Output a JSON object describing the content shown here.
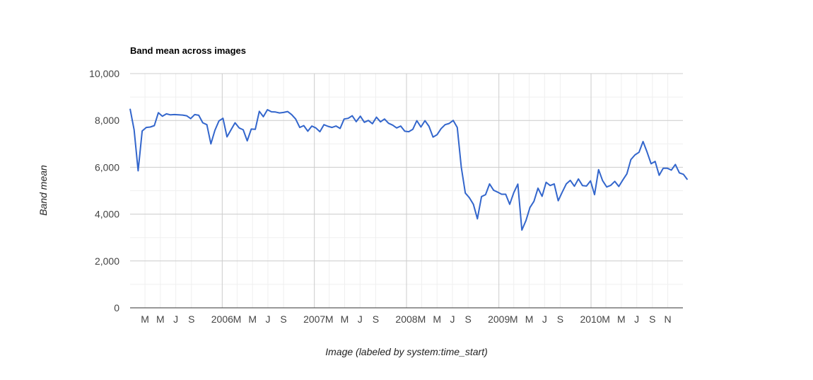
{
  "chart_data": {
    "type": "line",
    "title": "Band mean across images",
    "xlabel": "Image (labeled by system:time_start)",
    "ylabel": "Band mean",
    "ylim": [
      0,
      10000
    ],
    "y_ticks": [
      "0",
      "2,000",
      "4,000",
      "6,000",
      "8,000",
      "10,000"
    ],
    "y_tick_values": [
      0,
      2000,
      4000,
      6000,
      8000,
      10000
    ],
    "x_range": [
      "2005-01-01",
      "2010-12-31"
    ],
    "x_ticks": [
      {
        "label": "M",
        "date": "2005-03-01"
      },
      {
        "label": "M",
        "date": "2005-05-01"
      },
      {
        "label": "J",
        "date": "2005-07-01"
      },
      {
        "label": "S",
        "date": "2005-09-01"
      },
      {
        "label": "2006",
        "date": "2006-01-01"
      },
      {
        "label": "M",
        "date": "2006-03-01"
      },
      {
        "label": "M",
        "date": "2006-05-01"
      },
      {
        "label": "J",
        "date": "2006-07-01"
      },
      {
        "label": "S",
        "date": "2006-09-01"
      },
      {
        "label": "2007",
        "date": "2007-01-01"
      },
      {
        "label": "M",
        "date": "2007-03-01"
      },
      {
        "label": "M",
        "date": "2007-05-01"
      },
      {
        "label": "J",
        "date": "2007-07-01"
      },
      {
        "label": "S",
        "date": "2007-09-01"
      },
      {
        "label": "2008",
        "date": "2008-01-01"
      },
      {
        "label": "M",
        "date": "2008-03-01"
      },
      {
        "label": "M",
        "date": "2008-05-01"
      },
      {
        "label": "J",
        "date": "2008-07-01"
      },
      {
        "label": "S",
        "date": "2008-09-01"
      },
      {
        "label": "2009",
        "date": "2009-01-01"
      },
      {
        "label": "M",
        "date": "2009-03-01"
      },
      {
        "label": "M",
        "date": "2009-05-01"
      },
      {
        "label": "J",
        "date": "2009-07-01"
      },
      {
        "label": "S",
        "date": "2009-09-01"
      },
      {
        "label": "2010",
        "date": "2010-01-01"
      },
      {
        "label": "M",
        "date": "2010-03-01"
      },
      {
        "label": "M",
        "date": "2010-05-01"
      },
      {
        "label": "J",
        "date": "2010-07-01"
      },
      {
        "label": "S",
        "date": "2010-09-01"
      },
      {
        "label": "N",
        "date": "2010-11-01"
      }
    ],
    "grid": true,
    "legend": "none",
    "series": [
      {
        "color": "#3366cc",
        "points": [
          [
            "2005-01-01",
            8500
          ],
          [
            "2005-01-17",
            7600
          ],
          [
            "2005-02-02",
            5850
          ],
          [
            "2005-02-18",
            7550
          ],
          [
            "2005-03-06",
            7700
          ],
          [
            "2005-03-22",
            7720
          ],
          [
            "2005-04-07",
            7780
          ],
          [
            "2005-04-23",
            8330
          ],
          [
            "2005-05-09",
            8180
          ],
          [
            "2005-05-25",
            8280
          ],
          [
            "2005-06-10",
            8240
          ],
          [
            "2005-06-26",
            8250
          ],
          [
            "2005-07-12",
            8240
          ],
          [
            "2005-07-28",
            8230
          ],
          [
            "2005-08-13",
            8200
          ],
          [
            "2005-08-29",
            8080
          ],
          [
            "2005-09-14",
            8250
          ],
          [
            "2005-09-30",
            8220
          ],
          [
            "2005-10-16",
            7900
          ],
          [
            "2005-11-01",
            7820
          ],
          [
            "2005-11-17",
            7000
          ],
          [
            "2005-12-03",
            7580
          ],
          [
            "2005-12-19",
            7980
          ],
          [
            "2006-01-04",
            8090
          ],
          [
            "2006-01-20",
            7300
          ],
          [
            "2006-02-05",
            7600
          ],
          [
            "2006-02-21",
            7900
          ],
          [
            "2006-03-09",
            7680
          ],
          [
            "2006-03-25",
            7600
          ],
          [
            "2006-04-10",
            7130
          ],
          [
            "2006-04-26",
            7630
          ],
          [
            "2006-05-12",
            7620
          ],
          [
            "2006-05-28",
            8390
          ],
          [
            "2006-06-13",
            8160
          ],
          [
            "2006-06-29",
            8460
          ],
          [
            "2006-07-15",
            8370
          ],
          [
            "2006-07-31",
            8360
          ],
          [
            "2006-08-16",
            8320
          ],
          [
            "2006-09-01",
            8340
          ],
          [
            "2006-09-17",
            8380
          ],
          [
            "2006-10-03",
            8250
          ],
          [
            "2006-10-19",
            8060
          ],
          [
            "2006-11-04",
            7700
          ],
          [
            "2006-11-20",
            7780
          ],
          [
            "2006-12-06",
            7540
          ],
          [
            "2006-12-22",
            7760
          ],
          [
            "2007-01-07",
            7680
          ],
          [
            "2007-01-23",
            7520
          ],
          [
            "2007-02-08",
            7820
          ],
          [
            "2007-02-24",
            7750
          ],
          [
            "2007-03-12",
            7700
          ],
          [
            "2007-03-28",
            7760
          ],
          [
            "2007-04-13",
            7660
          ],
          [
            "2007-04-29",
            8060
          ],
          [
            "2007-05-15",
            8090
          ],
          [
            "2007-05-31",
            8200
          ],
          [
            "2007-06-16",
            7950
          ],
          [
            "2007-07-02",
            8180
          ],
          [
            "2007-07-18",
            7920
          ],
          [
            "2007-08-03",
            8000
          ],
          [
            "2007-08-19",
            7860
          ],
          [
            "2007-09-04",
            8140
          ],
          [
            "2007-09-20",
            7940
          ],
          [
            "2007-10-06",
            8060
          ],
          [
            "2007-10-22",
            7880
          ],
          [
            "2007-11-07",
            7800
          ],
          [
            "2007-11-23",
            7680
          ],
          [
            "2007-12-09",
            7760
          ],
          [
            "2007-12-25",
            7540
          ],
          [
            "2008-01-10",
            7520
          ],
          [
            "2008-01-26",
            7620
          ],
          [
            "2008-02-11",
            7990
          ],
          [
            "2008-02-27",
            7720
          ],
          [
            "2008-03-14",
            7990
          ],
          [
            "2008-03-30",
            7750
          ],
          [
            "2008-04-15",
            7290
          ],
          [
            "2008-05-01",
            7390
          ],
          [
            "2008-05-17",
            7650
          ],
          [
            "2008-06-02",
            7820
          ],
          [
            "2008-06-18",
            7870
          ],
          [
            "2008-07-04",
            8000
          ],
          [
            "2008-07-20",
            7700
          ],
          [
            "2008-08-05",
            6000
          ],
          [
            "2008-08-21",
            4900
          ],
          [
            "2008-09-06",
            4700
          ],
          [
            "2008-09-22",
            4420
          ],
          [
            "2008-10-08",
            3800
          ],
          [
            "2008-10-24",
            4750
          ],
          [
            "2008-11-09",
            4830
          ],
          [
            "2008-11-25",
            5290
          ],
          [
            "2008-12-11",
            5020
          ],
          [
            "2008-12-27",
            4940
          ],
          [
            "2009-01-12",
            4850
          ],
          [
            "2009-01-28",
            4850
          ],
          [
            "2009-02-13",
            4420
          ],
          [
            "2009-03-01",
            4920
          ],
          [
            "2009-03-17",
            5280
          ],
          [
            "2009-04-02",
            3320
          ],
          [
            "2009-04-18",
            3720
          ],
          [
            "2009-05-04",
            4280
          ],
          [
            "2009-05-20",
            4550
          ],
          [
            "2009-06-05",
            5110
          ],
          [
            "2009-06-21",
            4760
          ],
          [
            "2009-07-07",
            5360
          ],
          [
            "2009-07-23",
            5220
          ],
          [
            "2009-08-08",
            5290
          ],
          [
            "2009-08-24",
            4570
          ],
          [
            "2009-09-09",
            4940
          ],
          [
            "2009-09-25",
            5290
          ],
          [
            "2009-10-11",
            5440
          ],
          [
            "2009-10-27",
            5190
          ],
          [
            "2009-11-12",
            5500
          ],
          [
            "2009-11-28",
            5220
          ],
          [
            "2009-12-14",
            5200
          ],
          [
            "2009-12-30",
            5420
          ],
          [
            "2010-01-15",
            4830
          ],
          [
            "2010-01-31",
            5900
          ],
          [
            "2010-02-16",
            5430
          ],
          [
            "2010-03-04",
            5160
          ],
          [
            "2010-03-20",
            5230
          ],
          [
            "2010-04-05",
            5400
          ],
          [
            "2010-04-21",
            5180
          ],
          [
            "2010-05-07",
            5460
          ],
          [
            "2010-05-23",
            5720
          ],
          [
            "2010-06-08",
            6330
          ],
          [
            "2010-06-24",
            6530
          ],
          [
            "2010-07-10",
            6640
          ],
          [
            "2010-07-26",
            7100
          ],
          [
            "2010-08-11",
            6650
          ],
          [
            "2010-08-27",
            6150
          ],
          [
            "2010-09-12",
            6250
          ],
          [
            "2010-09-28",
            5660
          ],
          [
            "2010-10-14",
            5960
          ],
          [
            "2010-10-30",
            5960
          ],
          [
            "2010-11-15",
            5880
          ],
          [
            "2010-12-01",
            6120
          ],
          [
            "2010-12-17",
            5760
          ],
          [
            "2011-01-02",
            5700
          ],
          [
            "2011-01-18",
            5470
          ]
        ]
      }
    ]
  }
}
